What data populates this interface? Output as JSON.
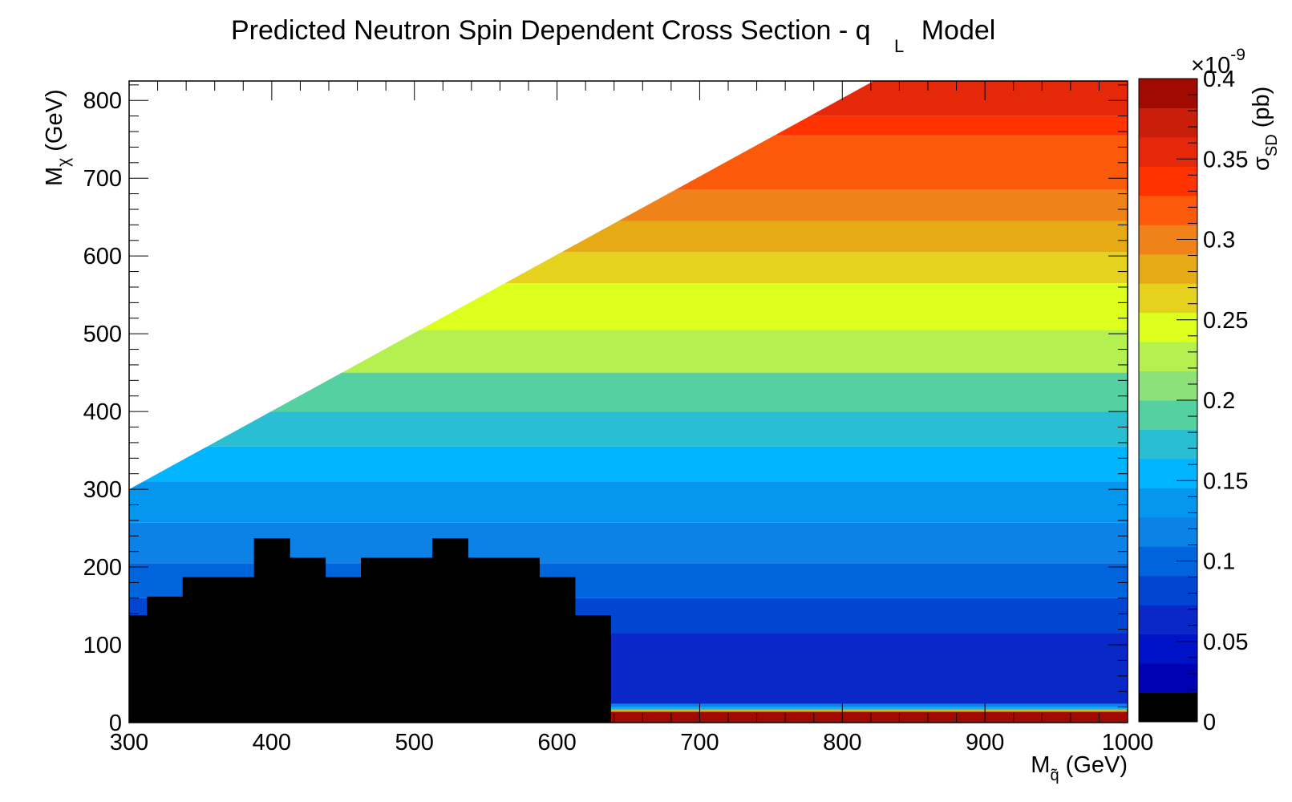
{
  "chart_data": {
    "type": "heatmap",
    "title": "Predicted Neutron Spin Dependent Cross Section - q",
    "title_subscript": "L",
    "title_suffix": "Model",
    "xlabel": "M",
    "xlabel_subscript": "q̃",
    "xlabel_unit": "(GeV)",
    "ylabel": "M",
    "ylabel_subscript": "χ",
    "ylabel_unit": "(GeV)",
    "zlabel": "σ",
    "zlabel_subscript": "SD",
    "zlabel_unit": "(pb)",
    "z_exponent_base": "×10",
    "z_exponent": "-9",
    "xlim": [
      300,
      1000
    ],
    "ylim": [
      0,
      825
    ],
    "zlim": [
      0,
      0.4
    ],
    "x_ticks": [
      300,
      400,
      500,
      600,
      700,
      800,
      900,
      1000
    ],
    "x_tick_labels": [
      "300",
      "400",
      "500",
      "600",
      "700",
      "800",
      "900",
      "1000"
    ],
    "y_ticks": [
      0,
      100,
      200,
      300,
      400,
      500,
      600,
      700,
      800
    ],
    "y_tick_labels": [
      "0",
      "100",
      "200",
      "300",
      "400",
      "500",
      "600",
      "700",
      "800"
    ],
    "z_ticks": [
      0,
      0.05,
      0.1,
      0.15,
      0.2,
      0.25,
      0.3,
      0.35,
      0.4
    ],
    "z_tick_labels": [
      "0",
      "0.05",
      "0.1",
      "0.15",
      "0.2",
      "0.25",
      "0.3",
      "0.35",
      "0.4"
    ],
    "kinematic_boundary": [
      [
        300,
        300
      ],
      [
        822,
        825
      ]
    ],
    "color_levels": [
      "#000000",
      "#0000b4",
      "#0012c8",
      "#0a28c8",
      "#0046d2",
      "#0064dc",
      "#0c82e6",
      "#0596f0",
      "#00b4ff",
      "#29bed2",
      "#55d0a0",
      "#8ce178",
      "#b4f050",
      "#dcff1e",
      "#e6d21e",
      "#e6aa14",
      "#f0821a",
      "#fa5a0a",
      "#ff3200",
      "#e6280a",
      "#c81e0a",
      "#a00a00"
    ],
    "mass_bands": [
      {
        "y_range": [
          0,
          14
        ],
        "z": 0.4
      },
      {
        "y_range": [
          14,
          17
        ],
        "z": 0.27
      },
      {
        "y_range": [
          17,
          20
        ],
        "z": 0.15
      },
      {
        "y_range": [
          20,
          24
        ],
        "z": 0.1
      },
      {
        "y_range": [
          24,
          115
        ],
        "z": 0.05
      },
      {
        "y_range": [
          115,
          160
        ],
        "z": 0.07
      },
      {
        "y_range": [
          160,
          205
        ],
        "z": 0.09
      },
      {
        "y_range": [
          205,
          257
        ],
        "z": 0.11
      },
      {
        "y_range": [
          257,
          310
        ],
        "z": 0.13
      },
      {
        "y_range": [
          310,
          355
        ],
        "z": 0.15
      },
      {
        "y_range": [
          355,
          400
        ],
        "z": 0.17
      },
      {
        "y_range": [
          400,
          450
        ],
        "z": 0.19
      },
      {
        "y_range": [
          450,
          505
        ],
        "z": 0.21
      },
      {
        "y_range": [
          505,
          565
        ],
        "z": 0.23
      },
      {
        "y_range": [
          565,
          605
        ],
        "z": 0.26
      },
      {
        "y_range": [
          605,
          645
        ],
        "z": 0.28
      },
      {
        "y_range": [
          645,
          685
        ],
        "z": 0.3
      },
      {
        "y_range": [
          685,
          755
        ],
        "z": 0.32
      },
      {
        "y_range": [
          755,
          780
        ],
        "z": 0.34
      },
      {
        "y_range": [
          780,
          825
        ],
        "z": 0.36
      }
    ],
    "excluded_region": {
      "z": 0,
      "bins": [
        {
          "x": [
            300,
            312.5
          ],
          "y_max": 138
        },
        {
          "x": [
            312.5,
            337.5
          ],
          "y_max": 162
        },
        {
          "x": [
            337.5,
            387.5
          ],
          "y_max": 187
        },
        {
          "x": [
            387.5,
            412.5
          ],
          "y_max": 237
        },
        {
          "x": [
            412.5,
            437.5
          ],
          "y_max": 212
        },
        {
          "x": [
            437.5,
            462.5
          ],
          "y_max": 187
        },
        {
          "x": [
            462.5,
            512.5
          ],
          "y_max": 212
        },
        {
          "x": [
            512.5,
            537.5
          ],
          "y_max": 237
        },
        {
          "x": [
            537.5,
            587.5
          ],
          "y_max": 212
        },
        {
          "x": [
            587.5,
            612.5
          ],
          "y_max": 187
        },
        {
          "x": [
            612.5,
            637.5
          ],
          "y_max": 138
        }
      ]
    },
    "grid": false,
    "colorbar": "right"
  }
}
